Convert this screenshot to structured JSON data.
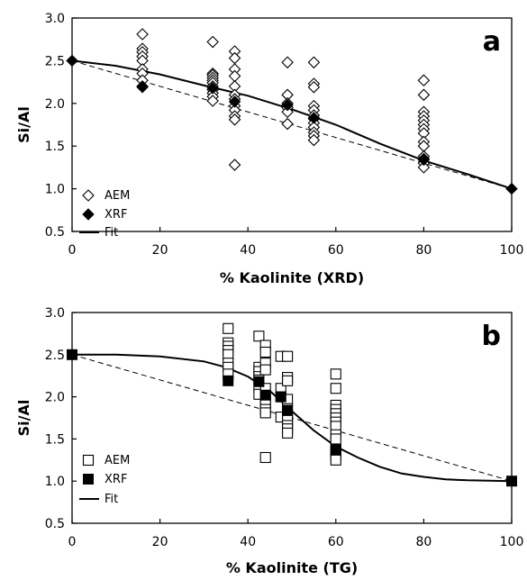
{
  "chart_data": [
    {
      "panel": "a",
      "type": "scatter",
      "xlabel": "% Kaolinite (XRD)",
      "ylabel": "Si/Al",
      "xlim": [
        0,
        100
      ],
      "ylim": [
        0.5,
        3.0
      ],
      "xticks": [
        0,
        20,
        40,
        60,
        80,
        100
      ],
      "yticks": [
        0.5,
        1.0,
        1.5,
        2.0,
        2.5,
        3.0
      ],
      "xtick_labels": [
        "0",
        "20",
        "40",
        "60",
        "80",
        "100"
      ],
      "ytick_labels": [
        "0.5",
        "1.0",
        "1.5",
        "2.0",
        "2.5",
        "3.0"
      ],
      "legend_position": "bottom-left",
      "series": [
        {
          "name": "AEM",
          "marker": "open-diamond",
          "points": [
            [
              16,
              2.81
            ],
            [
              16,
              2.64
            ],
            [
              16,
              2.6
            ],
            [
              16,
              2.55
            ],
            [
              16,
              2.5
            ],
            [
              16,
              2.4
            ],
            [
              16,
              2.35
            ],
            [
              16,
              2.27
            ],
            [
              16,
              2.2
            ],
            [
              32,
              2.72
            ],
            [
              32,
              2.35
            ],
            [
              32,
              2.33
            ],
            [
              32,
              2.3
            ],
            [
              32,
              2.27
            ],
            [
              32,
              2.24
            ],
            [
              32,
              2.2
            ],
            [
              32,
              2.16
            ],
            [
              32,
              2.12
            ],
            [
              32,
              2.08
            ],
            [
              32,
              2.03
            ],
            [
              37,
              2.61
            ],
            [
              37,
              2.53
            ],
            [
              37,
              2.4
            ],
            [
              37,
              2.32
            ],
            [
              37,
              2.2
            ],
            [
              37,
              2.1
            ],
            [
              37,
              2.05
            ],
            [
              37,
              1.97
            ],
            [
              37,
              1.92
            ],
            [
              37,
              1.85
            ],
            [
              37,
              1.81
            ],
            [
              37,
              1.28
            ],
            [
              49,
              2.48
            ],
            [
              49,
              2.1
            ],
            [
              49,
              2.0
            ],
            [
              49,
              1.95
            ],
            [
              49,
              1.9
            ],
            [
              49,
              1.76
            ],
            [
              55,
              2.48
            ],
            [
              55,
              2.23
            ],
            [
              55,
              2.19
            ],
            [
              55,
              1.97
            ],
            [
              55,
              1.92
            ],
            [
              55,
              1.86
            ],
            [
              55,
              1.82
            ],
            [
              55,
              1.77
            ],
            [
              55,
              1.72
            ],
            [
              55,
              1.66
            ],
            [
              55,
              1.62
            ],
            [
              55,
              1.57
            ],
            [
              80,
              2.27
            ],
            [
              80,
              2.1
            ],
            [
              80,
              1.9
            ],
            [
              80,
              1.85
            ],
            [
              80,
              1.8
            ],
            [
              80,
              1.75
            ],
            [
              80,
              1.7
            ],
            [
              80,
              1.65
            ],
            [
              80,
              1.55
            ],
            [
              80,
              1.5
            ],
            [
              80,
              1.38
            ],
            [
              80,
              1.35
            ],
            [
              80,
              1.3
            ],
            [
              80,
              1.25
            ]
          ]
        },
        {
          "name": "XRF",
          "marker": "filled-diamond",
          "points": [
            [
              0,
              2.5
            ],
            [
              16,
              2.19
            ],
            [
              32,
              2.18
            ],
            [
              37,
              2.02
            ],
            [
              49,
              1.98
            ],
            [
              55,
              1.83
            ],
            [
              80,
              1.34
            ],
            [
              100,
              1.0
            ]
          ]
        }
      ],
      "fit": {
        "name": "Fit",
        "points": [
          [
            0,
            2.5
          ],
          [
            10,
            2.44
          ],
          [
            20,
            2.34
          ],
          [
            30,
            2.21
          ],
          [
            40,
            2.09
          ],
          [
            50,
            1.93
          ],
          [
            60,
            1.75
          ],
          [
            70,
            1.53
          ],
          [
            80,
            1.33
          ],
          [
            90,
            1.17
          ],
          [
            100,
            1.0
          ]
        ]
      },
      "reference_line": {
        "points": [
          [
            0,
            2.5
          ],
          [
            100,
            1.0
          ]
        ],
        "style": "dashed"
      }
    },
    {
      "panel": "b",
      "type": "scatter",
      "xlabel": "% Kaolinite (TG)",
      "ylabel": "Si/Al",
      "xlim": [
        0,
        100
      ],
      "ylim": [
        0.5,
        3.0
      ],
      "xticks": [
        0,
        20,
        40,
        60,
        80,
        100
      ],
      "yticks": [
        0.5,
        1.0,
        1.5,
        2.0,
        2.5,
        3.0
      ],
      "xtick_labels": [
        "0",
        "20",
        "40",
        "60",
        "80",
        "100"
      ],
      "ytick_labels": [
        "0.5",
        "1.0",
        "1.5",
        "2.0",
        "2.5",
        "3.0"
      ],
      "legend_position": "bottom-left",
      "series": [
        {
          "name": "AEM",
          "marker": "open-square",
          "points": [
            [
              35.5,
              2.81
            ],
            [
              35.5,
              2.64
            ],
            [
              35.5,
              2.6
            ],
            [
              35.5,
              2.55
            ],
            [
              35.5,
              2.5
            ],
            [
              35.5,
              2.4
            ],
            [
              35.5,
              2.35
            ],
            [
              35.5,
              2.27
            ],
            [
              42.5,
              2.72
            ],
            [
              42.5,
              2.35
            ],
            [
              42.5,
              2.3
            ],
            [
              42.5,
              2.24
            ],
            [
              42.5,
              2.2
            ],
            [
              42.5,
              2.12
            ],
            [
              42.5,
              2.03
            ],
            [
              44,
              2.61
            ],
            [
              44,
              2.53
            ],
            [
              44,
              2.4
            ],
            [
              44,
              2.32
            ],
            [
              44,
              2.1
            ],
            [
              44,
              1.97
            ],
            [
              44,
              1.92
            ],
            [
              44,
              1.85
            ],
            [
              44,
              1.81
            ],
            [
              44,
              1.28
            ],
            [
              47.5,
              2.48
            ],
            [
              47.5,
              2.1
            ],
            [
              47.5,
              2.0
            ],
            [
              47.5,
              1.76
            ],
            [
              49,
              2.48
            ],
            [
              49,
              2.23
            ],
            [
              49,
              2.19
            ],
            [
              49,
              1.97
            ],
            [
              49,
              1.86
            ],
            [
              49,
              1.77
            ],
            [
              49,
              1.72
            ],
            [
              49,
              1.66
            ],
            [
              49,
              1.62
            ],
            [
              49,
              1.57
            ],
            [
              60,
              2.27
            ],
            [
              60,
              2.1
            ],
            [
              60,
              1.9
            ],
            [
              60,
              1.85
            ],
            [
              60,
              1.8
            ],
            [
              60,
              1.75
            ],
            [
              60,
              1.7
            ],
            [
              60,
              1.65
            ],
            [
              60,
              1.55
            ],
            [
              60,
              1.5
            ],
            [
              60,
              1.38
            ],
            [
              60,
              1.35
            ],
            [
              60,
              1.3
            ],
            [
              60,
              1.25
            ]
          ]
        },
        {
          "name": "XRF",
          "marker": "filled-square",
          "points": [
            [
              0,
              2.5
            ],
            [
              35.5,
              2.19
            ],
            [
              42.5,
              2.18
            ],
            [
              44,
              2.02
            ],
            [
              47.5,
              2.0
            ],
            [
              49,
              1.84
            ],
            [
              60,
              1.37
            ],
            [
              100,
              1.0
            ]
          ]
        }
      ],
      "fit": {
        "name": "Fit",
        "points": [
          [
            0,
            2.5
          ],
          [
            10,
            2.5
          ],
          [
            20,
            2.48
          ],
          [
            30,
            2.42
          ],
          [
            35,
            2.35
          ],
          [
            40,
            2.24
          ],
          [
            45,
            2.07
          ],
          [
            50,
            1.83
          ],
          [
            55,
            1.6
          ],
          [
            60,
            1.41
          ],
          [
            65,
            1.28
          ],
          [
            70,
            1.17
          ],
          [
            75,
            1.09
          ],
          [
            80,
            1.05
          ],
          [
            85,
            1.02
          ],
          [
            90,
            1.01
          ],
          [
            100,
            1.0
          ]
        ]
      },
      "reference_line": {
        "points": [
          [
            0,
            2.5
          ],
          [
            100,
            1.0
          ]
        ],
        "style": "dashed"
      }
    }
  ]
}
